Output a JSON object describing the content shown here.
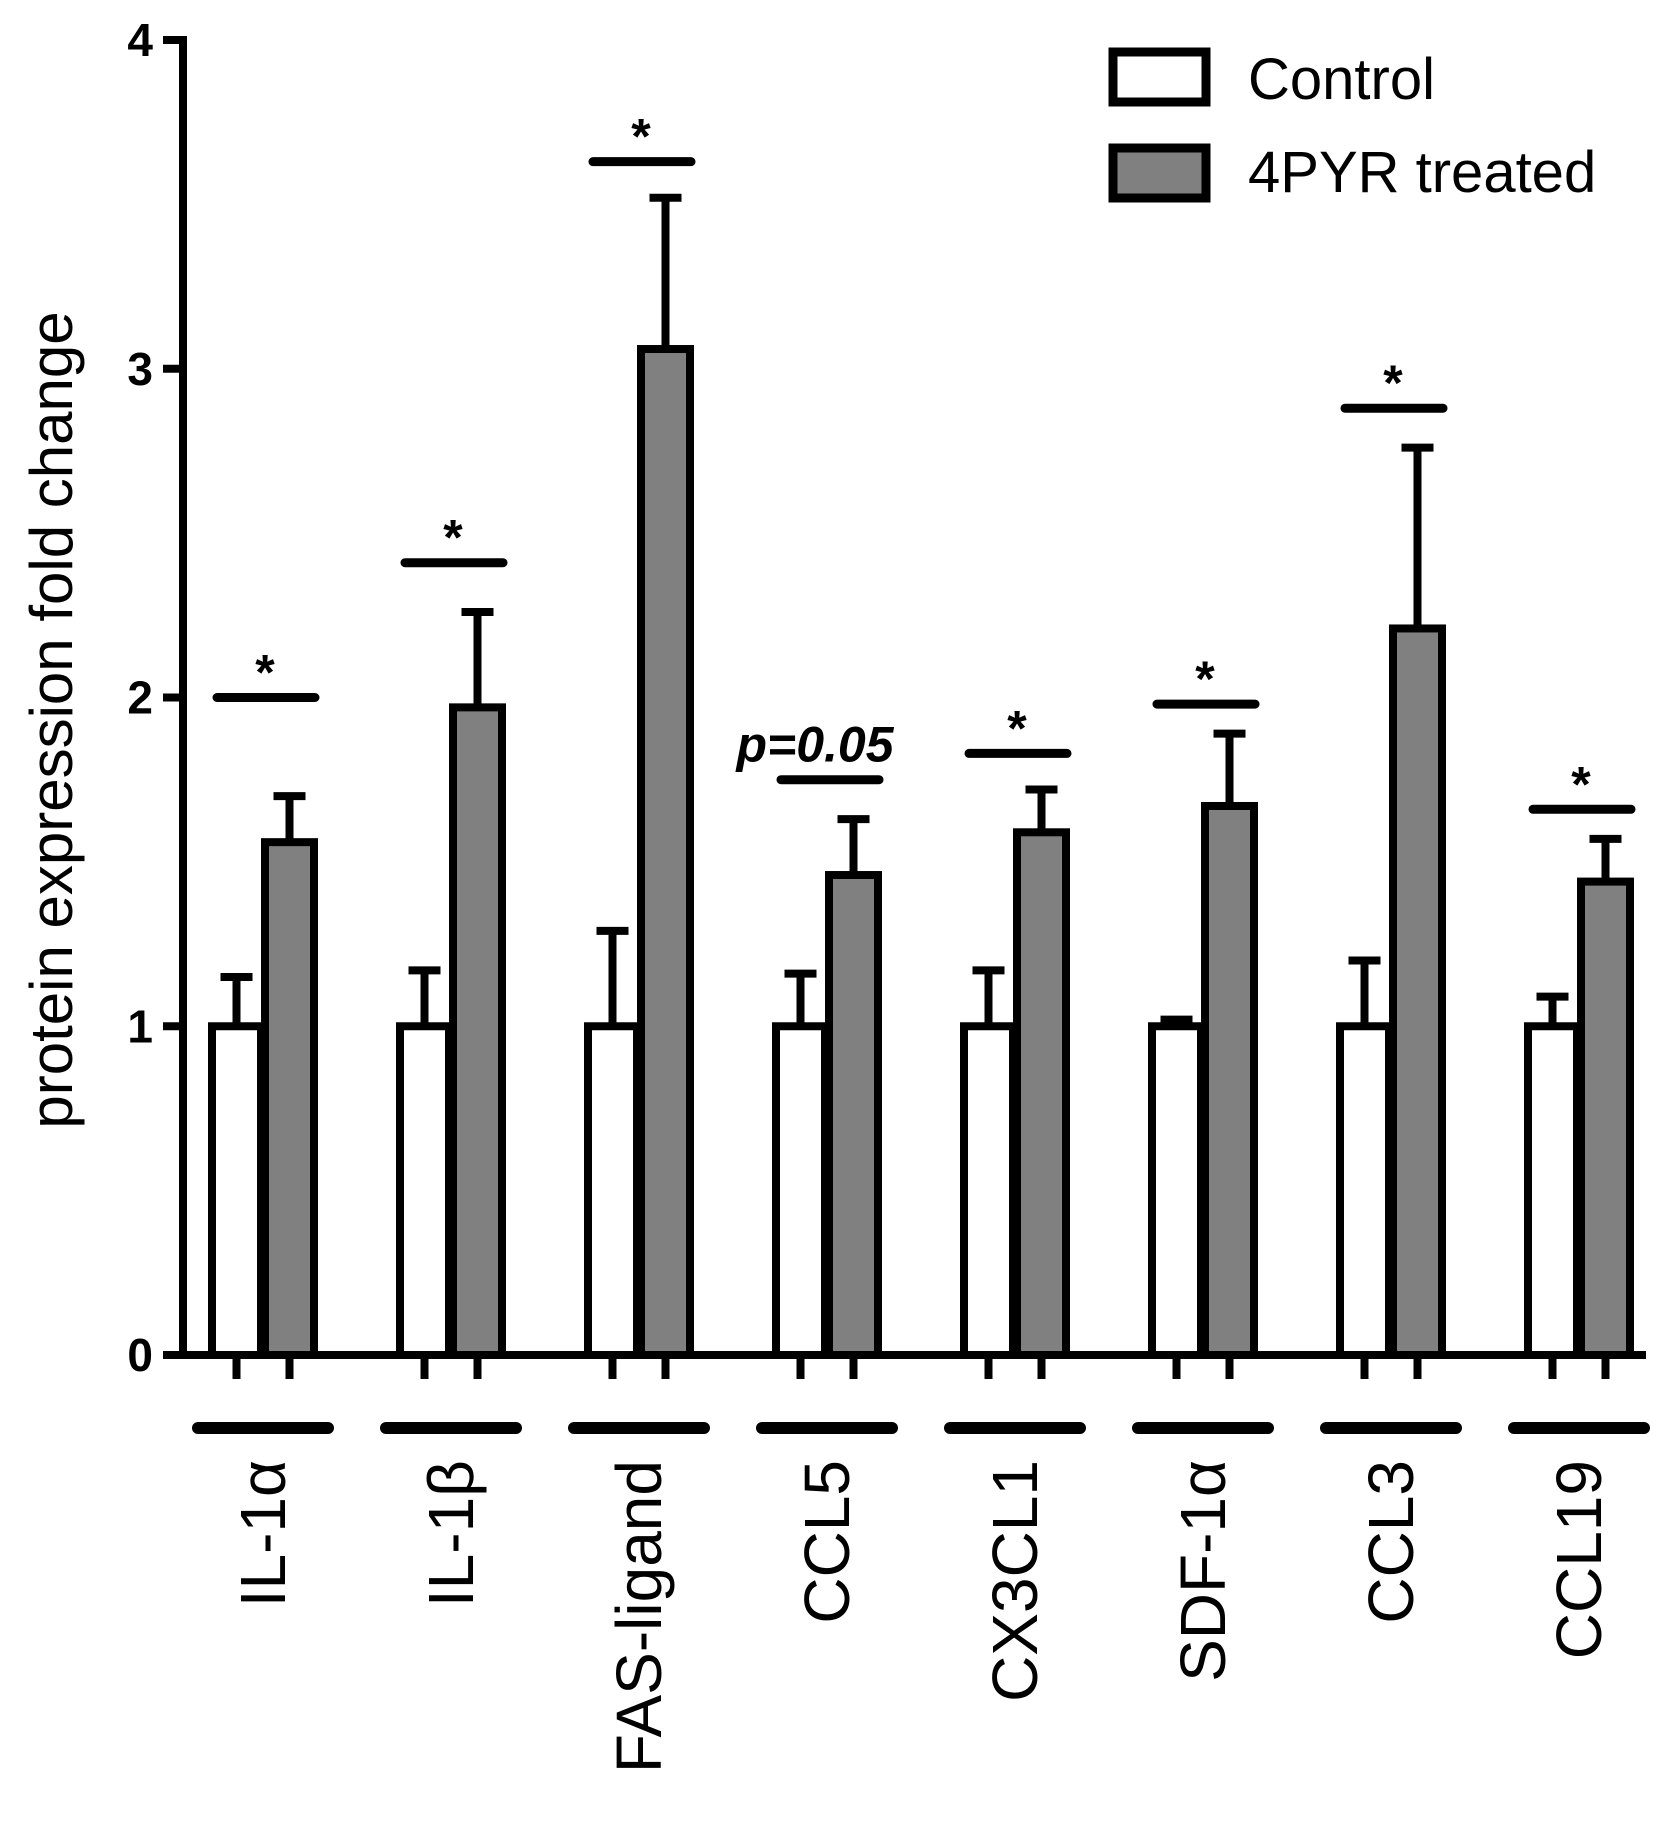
{
  "chart_data": {
    "type": "bar",
    "title": "",
    "xlabel": "",
    "ylabel": "protein expression fold change",
    "ylim": [
      0,
      4
    ],
    "yticks": [
      "0",
      "1",
      "2",
      "3",
      "4"
    ],
    "categories": [
      "IL-1α",
      "IL-1β",
      "FAS-ligand",
      "CCL5",
      "CX3CL1",
      "SDF-1α",
      "CCL3",
      "CCL19"
    ],
    "series": [
      {
        "name": "Control",
        "color": "#ffffff",
        "values": [
          1.0,
          1.0,
          1.0,
          1.0,
          1.0,
          1.0,
          1.0,
          1.0
        ],
        "errors": [
          0.15,
          0.17,
          0.29,
          0.16,
          0.17,
          0.02,
          0.2,
          0.09
        ]
      },
      {
        "name": "4PYR treated",
        "color": "#808080",
        "values": [
          1.56,
          1.97,
          3.06,
          1.46,
          1.59,
          1.67,
          2.21,
          1.44
        ],
        "errors": [
          0.14,
          0.29,
          0.46,
          0.17,
          0.13,
          0.22,
          0.55,
          0.13
        ]
      }
    ],
    "significance": [
      {
        "label": "*",
        "y": 2.0
      },
      {
        "label": "*",
        "y": 2.41
      },
      {
        "label": "*",
        "y": 3.63
      },
      {
        "label": "p=0.05",
        "y": 1.75
      },
      {
        "label": "*",
        "y": 1.83
      },
      {
        "label": "*",
        "y": 1.98
      },
      {
        "label": "*",
        "y": 2.88
      },
      {
        "label": "*",
        "y": 1.66
      }
    ],
    "legend_position": "top-right",
    "grid": false
  }
}
